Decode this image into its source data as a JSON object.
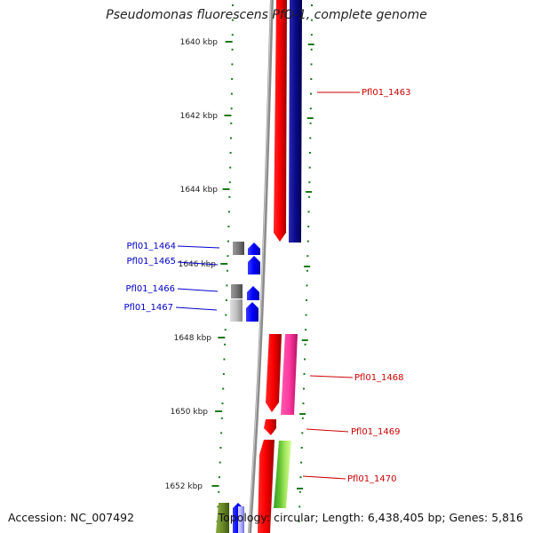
{
  "title": "Pseudomonas fluorescens PfO-1, complete genome",
  "footer": {
    "accession": "Accession: NC_007492",
    "summary": "Topology: circular; Length: 6,438,405 bp; Genes: 5,816"
  },
  "colors": {
    "backbone": "#8c8c8c",
    "tick": "#1a7a1a",
    "label_red": "#cc0000",
    "label_blue": "#0000cc"
  },
  "ruler": {
    "unit": "kbp",
    "tick_labels": [
      "1640 kbp",
      "1642 kbp",
      "1644 kbp",
      "1646 kbp",
      "1648 kbp",
      "1650 kbp",
      "1652 kbp"
    ]
  },
  "genes": [
    {
      "label": "Pfl01_1463",
      "color": "#cc0000"
    },
    {
      "label": "Pfl01_1464",
      "color": "#0000cc"
    },
    {
      "label": "Pfl01_1465",
      "color": "#0000cc"
    },
    {
      "label": "Pfl01_1466",
      "color": "#0000cc"
    },
    {
      "label": "Pfl01_1467",
      "color": "#0000cc"
    },
    {
      "label": "Pfl01_1468",
      "color": "#cc0000"
    },
    {
      "label": "Pfl01_1469",
      "color": "#cc0000"
    },
    {
      "label": "Pfl01_1470",
      "color": "#cc0000"
    }
  ]
}
